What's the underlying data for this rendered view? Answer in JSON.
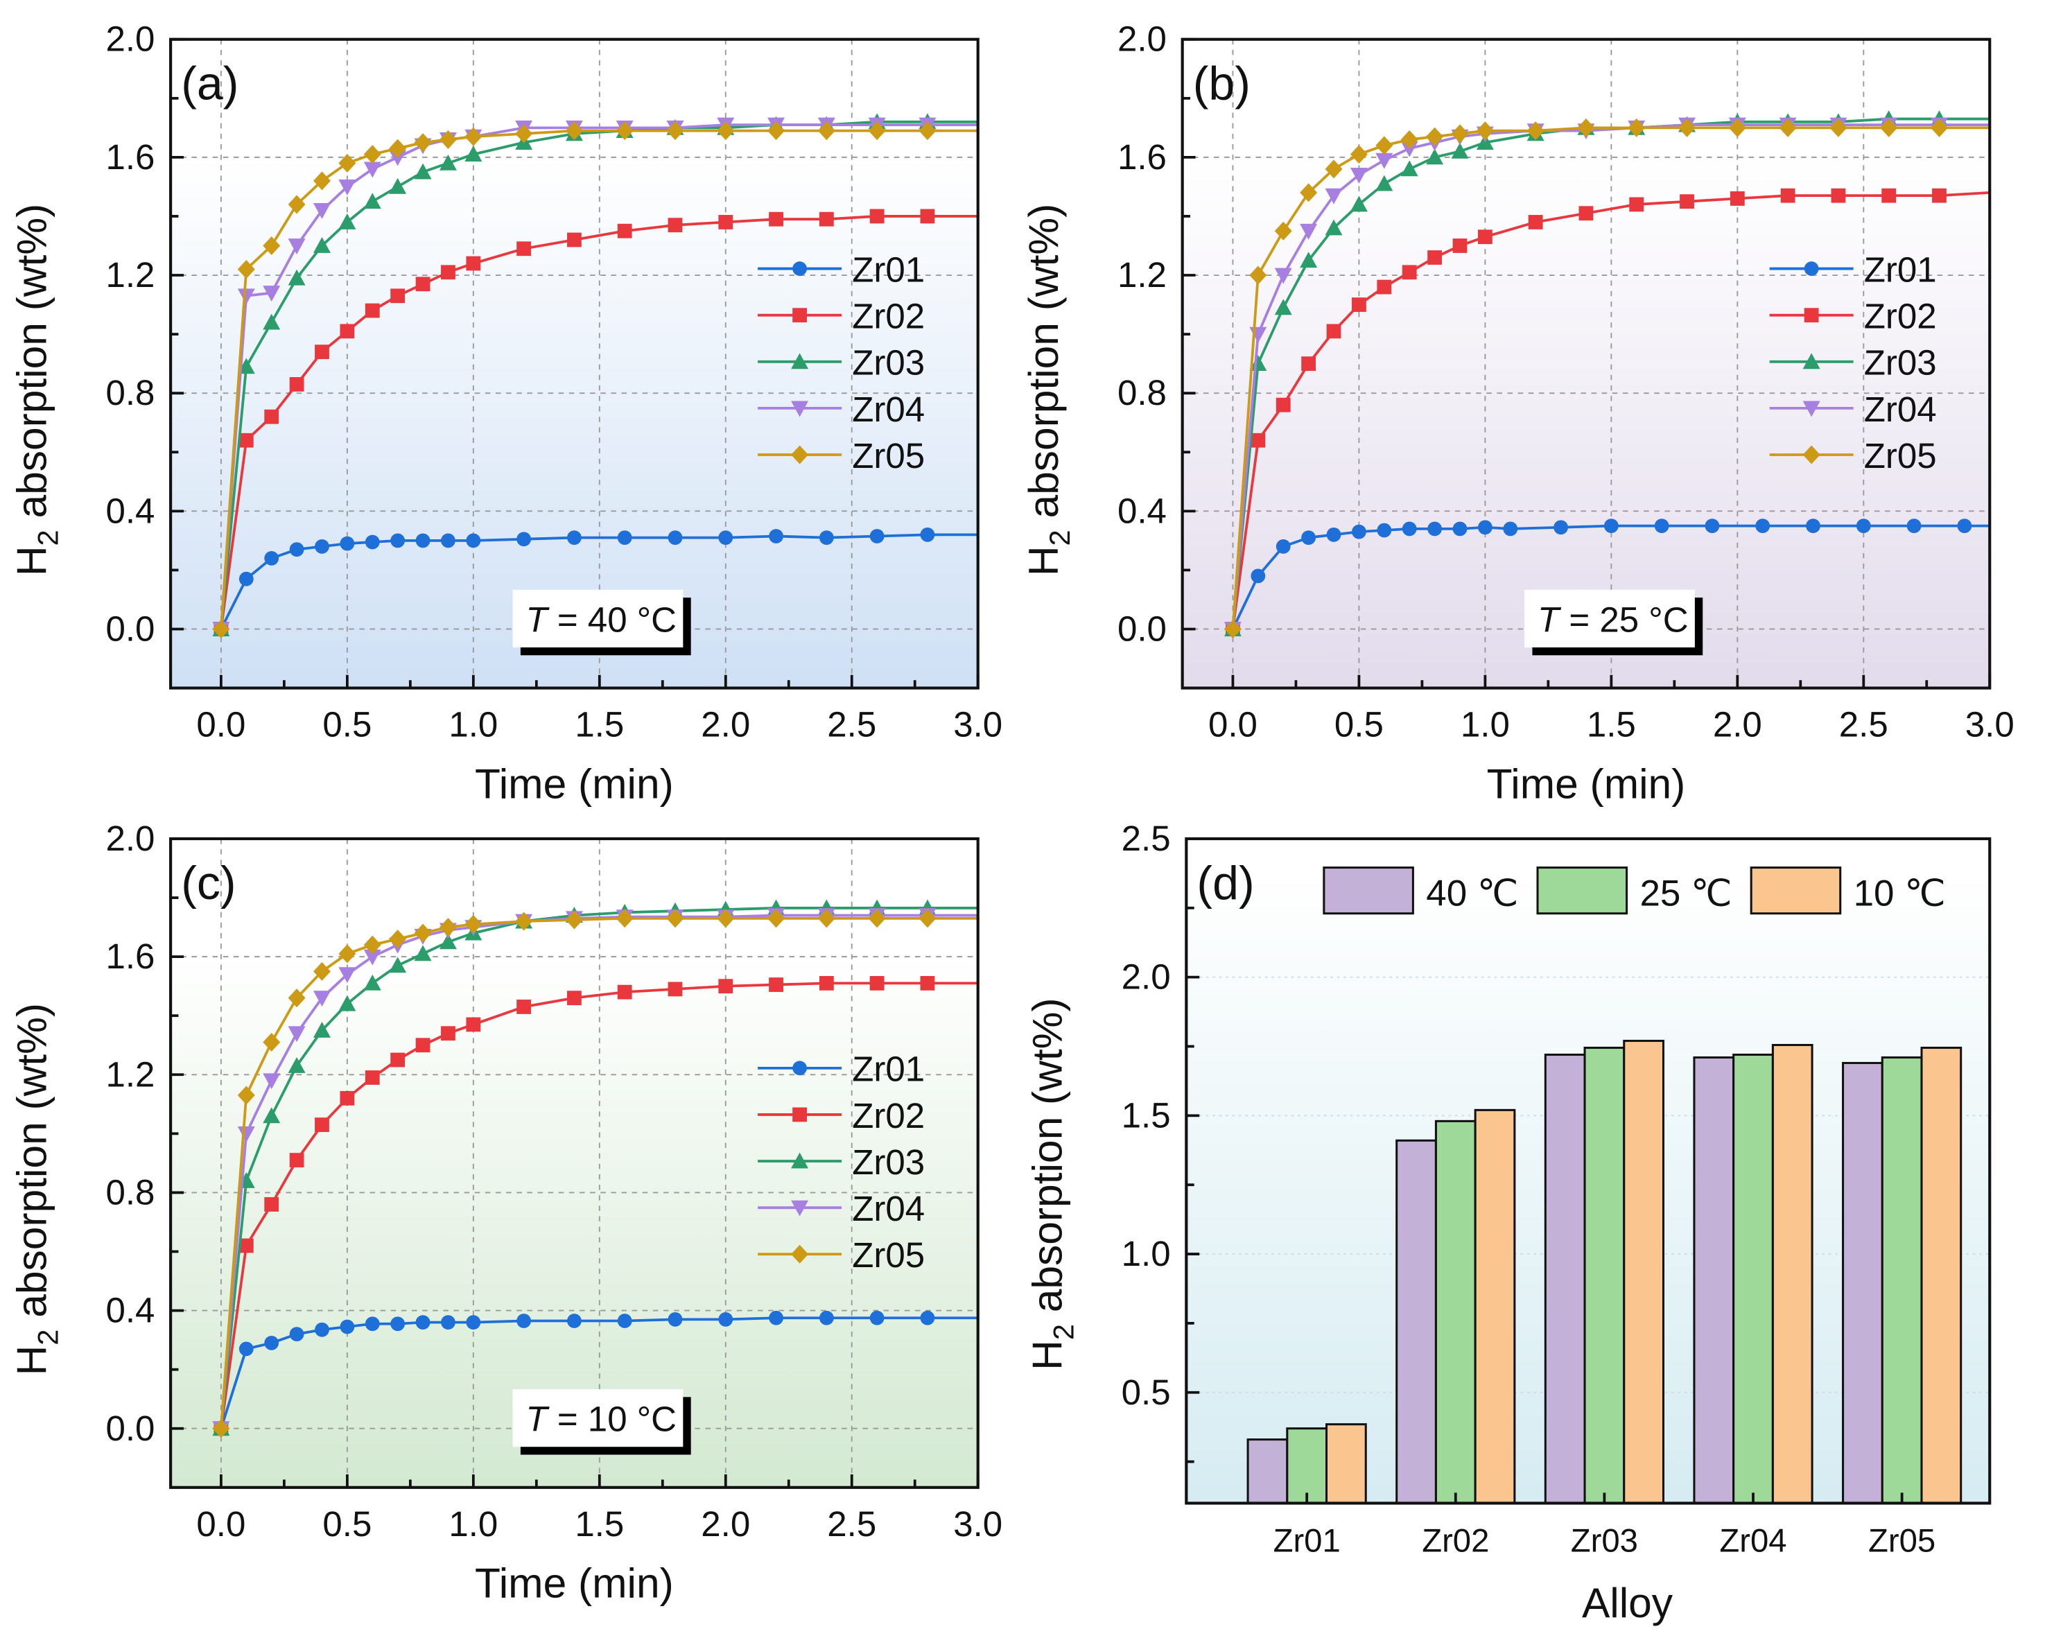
{
  "colors": {
    "Zr01": "#1f6fd8",
    "Zr02": "#e8383d",
    "Zr03": "#2a9d6a",
    "Zr04": "#a67fe0",
    "Zr05": "#cc9a14",
    "bar40": "#c3b1d8",
    "bar25": "#9ed99a",
    "bar10": "#fbc590"
  },
  "chart_data": [
    {
      "type": "line",
      "panel_label": "(a)",
      "xlabel": "Time (min)",
      "ylabel": {
        "main": "H",
        "sub": "2",
        "rest": " absorption (wt%)"
      },
      "xlim": [
        -0.2,
        3.0
      ],
      "ylim": [
        -0.2,
        2.0
      ],
      "xticks": [
        "0.0",
        "0.5",
        "1.0",
        "1.5",
        "2.0",
        "2.5",
        "3.0"
      ],
      "yticks": [
        "0.0",
        "0.4",
        "0.8",
        "1.2",
        "1.6",
        "2.0"
      ],
      "annotation": {
        "var": "T",
        "text": " = 40 °C"
      },
      "legend": "center-right",
      "grid": true,
      "background": "#cfe0f5",
      "series": [
        {
          "name": "Zr01",
          "marker": "circle",
          "x": [
            0,
            0.1,
            0.2,
            0.3,
            0.4,
            0.5,
            0.6,
            0.7,
            0.8,
            0.9,
            1.0,
            1.2,
            1.4,
            1.6,
            1.8,
            2.0,
            2.2,
            2.4,
            2.6,
            2.8,
            3.0
          ],
          "y": [
            0,
            0.17,
            0.24,
            0.27,
            0.28,
            0.29,
            0.295,
            0.3,
            0.3,
            0.3,
            0.3,
            0.305,
            0.31,
            0.31,
            0.31,
            0.31,
            0.315,
            0.31,
            0.315,
            0.32,
            0.32
          ]
        },
        {
          "name": "Zr02",
          "marker": "square",
          "x": [
            0,
            0.1,
            0.2,
            0.3,
            0.4,
            0.5,
            0.6,
            0.7,
            0.8,
            0.9,
            1.0,
            1.2,
            1.4,
            1.6,
            1.8,
            2.0,
            2.2,
            2.4,
            2.6,
            2.8,
            3.0
          ],
          "y": [
            0,
            0.64,
            0.72,
            0.83,
            0.94,
            1.01,
            1.08,
            1.13,
            1.17,
            1.21,
            1.24,
            1.29,
            1.32,
            1.35,
            1.37,
            1.38,
            1.39,
            1.39,
            1.4,
            1.4,
            1.4
          ]
        },
        {
          "name": "Zr03",
          "marker": "triangle-up",
          "x": [
            0,
            0.1,
            0.2,
            0.3,
            0.4,
            0.5,
            0.6,
            0.7,
            0.8,
            0.9,
            1.0,
            1.2,
            1.4,
            1.6,
            1.8,
            2.0,
            2.2,
            2.4,
            2.6,
            2.8,
            3.0
          ],
          "y": [
            0,
            0.89,
            1.04,
            1.19,
            1.3,
            1.38,
            1.45,
            1.5,
            1.55,
            1.58,
            1.61,
            1.65,
            1.68,
            1.69,
            1.7,
            1.7,
            1.71,
            1.71,
            1.72,
            1.72,
            1.72
          ]
        },
        {
          "name": "Zr04",
          "marker": "triangle-down",
          "x": [
            0,
            0.1,
            0.2,
            0.3,
            0.4,
            0.5,
            0.6,
            0.7,
            0.8,
            0.9,
            1.0,
            1.2,
            1.4,
            1.6,
            1.8,
            2.0,
            2.2,
            2.4,
            2.6,
            2.8,
            3.0
          ],
          "y": [
            0,
            1.13,
            1.14,
            1.3,
            1.42,
            1.5,
            1.56,
            1.6,
            1.64,
            1.66,
            1.67,
            1.7,
            1.7,
            1.7,
            1.7,
            1.71,
            1.71,
            1.71,
            1.71,
            1.71,
            1.71
          ]
        },
        {
          "name": "Zr05",
          "marker": "diamond",
          "x": [
            0,
            0.1,
            0.2,
            0.3,
            0.4,
            0.5,
            0.6,
            0.7,
            0.8,
            0.9,
            1.0,
            1.2,
            1.4,
            1.6,
            1.8,
            2.0,
            2.2,
            2.4,
            2.6,
            2.8,
            3.0
          ],
          "y": [
            0,
            1.22,
            1.3,
            1.44,
            1.52,
            1.58,
            1.61,
            1.63,
            1.65,
            1.66,
            1.67,
            1.68,
            1.69,
            1.69,
            1.69,
            1.69,
            1.69,
            1.69,
            1.69,
            1.69,
            1.69
          ]
        }
      ]
    },
    {
      "type": "line",
      "panel_label": "(b)",
      "xlabel": "Time (min)",
      "ylabel": {
        "main": "H",
        "sub": "2",
        "rest": " absorption (wt%)"
      },
      "xlim": [
        -0.2,
        3.0
      ],
      "ylim": [
        -0.2,
        2.0
      ],
      "xticks": [
        "0.0",
        "0.5",
        "1.0",
        "1.5",
        "2.0",
        "2.5",
        "3.0"
      ],
      "yticks": [
        "0.0",
        "0.4",
        "0.8",
        "1.2",
        "1.6",
        "2.0"
      ],
      "annotation": {
        "var": "T",
        "text": " = 25 °C"
      },
      "legend": "center-right",
      "grid": true,
      "background": "#e2dbec",
      "series": [
        {
          "name": "Zr01",
          "marker": "circle",
          "x": [
            0,
            0.1,
            0.2,
            0.3,
            0.4,
            0.5,
            0.6,
            0.7,
            0.8,
            0.9,
            1.0,
            1.1,
            1.3,
            1.5,
            1.7,
            1.9,
            2.1,
            2.3,
            2.5,
            2.7,
            2.9,
            3.0
          ],
          "y": [
            0,
            0.18,
            0.28,
            0.31,
            0.32,
            0.33,
            0.335,
            0.34,
            0.34,
            0.34,
            0.345,
            0.34,
            0.345,
            0.35,
            0.35,
            0.35,
            0.35,
            0.35,
            0.35,
            0.35,
            0.35,
            0.35
          ]
        },
        {
          "name": "Zr02",
          "marker": "square",
          "x": [
            0,
            0.1,
            0.2,
            0.3,
            0.4,
            0.5,
            0.6,
            0.7,
            0.8,
            0.9,
            1.0,
            1.2,
            1.4,
            1.6,
            1.8,
            2.0,
            2.2,
            2.4,
            2.6,
            2.8,
            3.0
          ],
          "y": [
            0,
            0.64,
            0.76,
            0.9,
            1.01,
            1.1,
            1.16,
            1.21,
            1.26,
            1.3,
            1.33,
            1.38,
            1.41,
            1.44,
            1.45,
            1.46,
            1.47,
            1.47,
            1.47,
            1.47,
            1.48
          ]
        },
        {
          "name": "Zr03",
          "marker": "triangle-up",
          "x": [
            0,
            0.1,
            0.2,
            0.3,
            0.4,
            0.5,
            0.6,
            0.7,
            0.8,
            0.9,
            1.0,
            1.2,
            1.4,
            1.6,
            1.8,
            2.0,
            2.2,
            2.4,
            2.6,
            2.8,
            3.0
          ],
          "y": [
            0,
            0.9,
            1.09,
            1.25,
            1.36,
            1.44,
            1.51,
            1.56,
            1.6,
            1.62,
            1.65,
            1.68,
            1.7,
            1.7,
            1.71,
            1.72,
            1.72,
            1.72,
            1.73,
            1.73,
            1.73
          ]
        },
        {
          "name": "Zr04",
          "marker": "triangle-down",
          "x": [
            0,
            0.1,
            0.2,
            0.3,
            0.4,
            0.5,
            0.6,
            0.7,
            0.8,
            0.9,
            1.0,
            1.2,
            1.4,
            1.6,
            1.8,
            2.0,
            2.2,
            2.4,
            2.6,
            2.8,
            3.0
          ],
          "y": [
            0,
            1.0,
            1.2,
            1.35,
            1.47,
            1.54,
            1.59,
            1.63,
            1.65,
            1.67,
            1.68,
            1.69,
            1.69,
            1.7,
            1.71,
            1.71,
            1.71,
            1.71,
            1.71,
            1.71,
            1.71
          ]
        },
        {
          "name": "Zr05",
          "marker": "diamond",
          "x": [
            0,
            0.1,
            0.2,
            0.3,
            0.4,
            0.5,
            0.6,
            0.7,
            0.8,
            0.9,
            1.0,
            1.2,
            1.4,
            1.6,
            1.8,
            2.0,
            2.2,
            2.4,
            2.6,
            2.8,
            3.0
          ],
          "y": [
            0,
            1.2,
            1.35,
            1.48,
            1.56,
            1.61,
            1.64,
            1.66,
            1.67,
            1.68,
            1.69,
            1.69,
            1.7,
            1.7,
            1.7,
            1.7,
            1.7,
            1.7,
            1.7,
            1.7,
            1.7
          ]
        }
      ]
    },
    {
      "type": "line",
      "panel_label": "(c)",
      "xlabel": "Time (min)",
      "ylabel": {
        "main": "H",
        "sub": "2",
        "rest": " absorption (wt%)"
      },
      "xlim": [
        -0.2,
        3.0
      ],
      "ylim": [
        -0.2,
        2.0
      ],
      "xticks": [
        "0.0",
        "0.5",
        "1.0",
        "1.5",
        "2.0",
        "2.5",
        "3.0"
      ],
      "yticks": [
        "0.0",
        "0.4",
        "0.8",
        "1.2",
        "1.6",
        "2.0"
      ],
      "annotation": {
        "var": "T",
        "text": " = 10 °C"
      },
      "legend": "center-right",
      "grid": true,
      "background": "#d3e9d1",
      "series": [
        {
          "name": "Zr01",
          "marker": "circle",
          "x": [
            0,
            0.1,
            0.2,
            0.3,
            0.4,
            0.5,
            0.6,
            0.7,
            0.8,
            0.9,
            1.0,
            1.2,
            1.4,
            1.6,
            1.8,
            2.0,
            2.2,
            2.4,
            2.6,
            2.8,
            3.0
          ],
          "y": [
            0,
            0.27,
            0.29,
            0.32,
            0.335,
            0.345,
            0.355,
            0.355,
            0.36,
            0.36,
            0.36,
            0.365,
            0.365,
            0.365,
            0.37,
            0.37,
            0.375,
            0.375,
            0.375,
            0.375,
            0.375
          ]
        },
        {
          "name": "Zr02",
          "marker": "square",
          "x": [
            0,
            0.1,
            0.2,
            0.3,
            0.4,
            0.5,
            0.6,
            0.7,
            0.8,
            0.9,
            1.0,
            1.2,
            1.4,
            1.6,
            1.8,
            2.0,
            2.2,
            2.4,
            2.6,
            2.8,
            3.0
          ],
          "y": [
            0,
            0.62,
            0.76,
            0.91,
            1.03,
            1.12,
            1.19,
            1.25,
            1.3,
            1.34,
            1.37,
            1.43,
            1.46,
            1.48,
            1.49,
            1.5,
            1.505,
            1.51,
            1.51,
            1.51,
            1.51
          ]
        },
        {
          "name": "Zr03",
          "marker": "triangle-up",
          "x": [
            0,
            0.1,
            0.2,
            0.3,
            0.4,
            0.5,
            0.6,
            0.7,
            0.8,
            0.9,
            1.0,
            1.2,
            1.4,
            1.6,
            1.8,
            2.0,
            2.2,
            2.4,
            2.6,
            2.8,
            3.0
          ],
          "y": [
            0,
            0.84,
            1.06,
            1.23,
            1.35,
            1.44,
            1.51,
            1.57,
            1.61,
            1.65,
            1.68,
            1.72,
            1.74,
            1.75,
            1.755,
            1.76,
            1.765,
            1.765,
            1.765,
            1.765,
            1.765
          ]
        },
        {
          "name": "Zr04",
          "marker": "triangle-down",
          "x": [
            0,
            0.1,
            0.2,
            0.3,
            0.4,
            0.5,
            0.6,
            0.7,
            0.8,
            0.9,
            1.0,
            1.2,
            1.4,
            1.6,
            1.8,
            2.0,
            2.2,
            2.4,
            2.6,
            2.8,
            3.0
          ],
          "y": [
            0,
            1.0,
            1.18,
            1.34,
            1.46,
            1.54,
            1.6,
            1.64,
            1.67,
            1.69,
            1.7,
            1.72,
            1.73,
            1.735,
            1.735,
            1.735,
            1.74,
            1.74,
            1.74,
            1.74,
            1.74
          ]
        },
        {
          "name": "Zr05",
          "marker": "diamond",
          "x": [
            0,
            0.1,
            0.2,
            0.3,
            0.4,
            0.5,
            0.6,
            0.7,
            0.8,
            0.9,
            1.0,
            1.2,
            1.4,
            1.6,
            1.8,
            2.0,
            2.2,
            2.4,
            2.6,
            2.8,
            3.0
          ],
          "y": [
            0,
            1.13,
            1.31,
            1.46,
            1.55,
            1.61,
            1.64,
            1.66,
            1.68,
            1.7,
            1.71,
            1.72,
            1.725,
            1.73,
            1.73,
            1.73,
            1.73,
            1.73,
            1.73,
            1.73,
            1.73
          ]
        }
      ]
    },
    {
      "type": "bar",
      "panel_label": "(d)",
      "xlabel": "Alloy",
      "ylabel": {
        "main": "H",
        "sub": "2",
        "rest": " absorption (wt%)"
      },
      "ylim": [
        0.1,
        2.5
      ],
      "yticks": [
        "0.5",
        "1.0",
        "1.5",
        "2.0",
        "2.5"
      ],
      "categories": [
        "Zr01",
        "Zr02",
        "Zr03",
        "Zr04",
        "Zr05"
      ],
      "legend": "top",
      "grid": true,
      "background": "#d6ecf2",
      "series": [
        {
          "name": "40 ℃",
          "color_key": "bar40",
          "values": [
            0.33,
            1.41,
            1.72,
            1.71,
            1.69
          ]
        },
        {
          "name": "25 ℃",
          "color_key": "bar25",
          "values": [
            0.37,
            1.48,
            1.745,
            1.72,
            1.71
          ]
        },
        {
          "name": "10 ℃",
          "color_key": "bar10",
          "values": [
            0.385,
            1.52,
            1.77,
            1.755,
            1.745
          ]
        }
      ]
    }
  ]
}
